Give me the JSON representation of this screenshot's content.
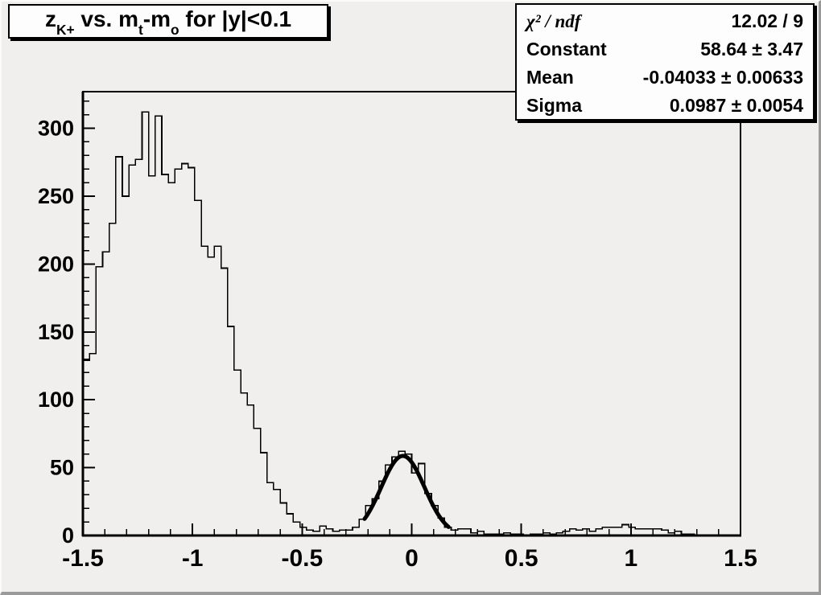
{
  "window": {
    "bg_color": "#f0efed",
    "line_color": "#000000",
    "box_fill": "#fdfdfd",
    "border_shadow_color": "#9a9a9a"
  },
  "title_box": {
    "title": "zK+ vs. mt-mo for |y|<0.1",
    "parts": [
      {
        "t": "z"
      },
      {
        "t": "K+",
        "sub": true
      },
      {
        "t": " vs. m"
      },
      {
        "t": "t",
        "sub": true
      },
      {
        "t": "-m"
      },
      {
        "t": "o",
        "sub": true
      },
      {
        "t": " for |y|<0.1"
      }
    ]
  },
  "stats_box": {
    "rows": [
      {
        "label": "χ² / ndf",
        "value": "12.02 / 9"
      },
      {
        "label": "Constant",
        "value": "58.64 ± 3.47"
      },
      {
        "label": "Mean",
        "value": "-0.04033 ± 0.00633"
      },
      {
        "label": "Sigma",
        "value": "0.0987 ± 0.0054"
      }
    ]
  },
  "chart_data": {
    "type": "bar",
    "subtype": "histogram-step-outline",
    "title": "zK+ vs. mt-mo for |y|<0.1",
    "xlabel": "",
    "ylabel": "",
    "xlim": [
      -1.5,
      1.5
    ],
    "ylim": [
      0,
      327
    ],
    "x_start": -1.5,
    "bin_width": 0.03,
    "values": [
      129,
      134,
      198,
      209,
      230,
      279,
      250,
      273,
      277,
      312,
      265,
      309,
      266,
      260,
      270,
      274,
      271,
      247,
      213,
      205,
      213,
      197,
      154,
      122,
      105,
      96,
      79,
      61,
      39,
      34,
      24,
      16,
      10,
      6,
      4,
      3,
      7,
      5,
      3,
      4,
      4,
      6,
      12,
      22,
      27,
      40,
      52,
      58,
      62,
      60,
      46,
      53,
      31,
      22,
      13,
      6,
      4,
      5,
      5,
      2,
      3,
      1,
      1,
      1,
      2,
      1,
      1,
      0,
      1,
      1,
      2,
      1,
      2,
      3,
      5,
      4,
      5,
      3,
      5,
      6,
      6,
      6,
      8,
      6,
      5,
      5,
      5,
      5,
      4,
      2,
      3,
      1,
      1,
      0,
      0,
      0,
      0,
      0,
      0,
      0
    ],
    "x_major_ticks": [
      -1.5,
      -1,
      -0.5,
      0,
      0.5,
      1,
      1.5
    ],
    "x_tick_labels": [
      "-1.5",
      "-1",
      "-0.5",
      "0",
      "0.5",
      "1",
      "1.5"
    ],
    "x_minor_step": 0.1,
    "y_major_ticks": [
      0,
      50,
      100,
      150,
      200,
      250,
      300
    ],
    "y_tick_labels": [
      "0",
      "50",
      "100",
      "150",
      "200",
      "250",
      "300"
    ],
    "y_minor_step": 10,
    "y_minor_max": 320,
    "grid": false,
    "legend": "none (stats box top-right)",
    "fit": {
      "type": "gaussian",
      "constant": 58.64,
      "mean": -0.04033,
      "sigma": 0.0987,
      "chi2": "12.02 / 9",
      "draw_range": [
        -0.215,
        0.168
      ],
      "line_width": 5
    }
  }
}
